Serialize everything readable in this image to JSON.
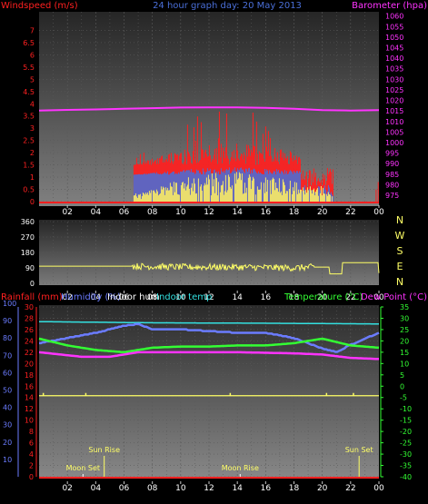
{
  "colors": {
    "background": "#000000",
    "red": "#ff2020",
    "yellow": "#ffff66",
    "magenta": "#ff33ff",
    "blue": "#6b7cff",
    "cyan": "#33e0e0",
    "green": "#33ff33",
    "white": "#ffffff",
    "steel": "#4a6fd8",
    "gray_axis": "#c8c8c8"
  },
  "chart_data": [
    {
      "id": "wind-baro",
      "type": "line",
      "title": "24 hour graph day: 20 May 2013",
      "left_axis_title": "Windspeed (m/s)",
      "right_axis_title": "Barometer (hpa)",
      "x_ticks": [
        "02",
        "04",
        "06",
        "08",
        "10",
        "12",
        "14",
        "16",
        "18",
        "20",
        "22",
        "00"
      ],
      "y_left_ticks": [
        "0",
        "0.5",
        "1",
        "1.5",
        "2",
        "2.5",
        "3",
        "3.5",
        "4",
        "4.5",
        "5",
        "5.5",
        "6",
        "6.5",
        "7"
      ],
      "y_left_range": [
        0,
        7.5
      ],
      "y_right_ticks": [
        "975",
        "980",
        "985",
        "990",
        "995",
        "1000",
        "1005",
        "1010",
        "1015",
        "1020",
        "1025",
        "1030",
        "1035",
        "1040",
        "1045",
        "1050",
        "1055",
        "1060"
      ],
      "y_right_range": [
        972,
        1062
      ],
      "barometer": [
        {
          "h": 0,
          "v": 1015.2
        },
        {
          "h": 2,
          "v": 1015.5
        },
        {
          "h": 4,
          "v": 1015.7
        },
        {
          "h": 6,
          "v": 1016.0
        },
        {
          "h": 8,
          "v": 1016.3
        },
        {
          "h": 10,
          "v": 1016.6
        },
        {
          "h": 12,
          "v": 1016.7
        },
        {
          "h": 14,
          "v": 1016.7
        },
        {
          "h": 16,
          "v": 1016.5
        },
        {
          "h": 18,
          "v": 1016.0
        },
        {
          "h": 20,
          "v": 1015.4
        },
        {
          "h": 22,
          "v": 1015.2
        },
        {
          "h": 24,
          "v": 1015.4
        }
      ],
      "wind_active_hours": [
        6.7,
        20.8
      ],
      "gust_base": 1.5,
      "average_base": 1.1,
      "gust_tail": [
        {
          "h": 23.8,
          "v": 0.5
        },
        {
          "h": 23.95,
          "v": 0.8
        }
      ]
    },
    {
      "id": "wind-direction",
      "type": "line",
      "y_ticks": [
        "0",
        "90",
        "180",
        "270",
        "360"
      ],
      "y_range": [
        0,
        360
      ],
      "direction_labels": [
        "N",
        "W",
        "S",
        "E",
        "N"
      ],
      "series": [
        {
          "h": 0,
          "v": 100
        },
        {
          "h": 6.5,
          "v": 100
        },
        {
          "h": 10,
          "v": 95
        },
        {
          "h": 14,
          "v": 95
        },
        {
          "h": 18,
          "v": 90
        },
        {
          "h": 19.3,
          "v": 95
        },
        {
          "h": 20,
          "v": 95
        },
        {
          "h": 20.5,
          "v": 55
        },
        {
          "h": 21.2,
          "v": 55
        },
        {
          "h": 21.4,
          "v": 120
        },
        {
          "h": 23.8,
          "v": 120
        },
        {
          "h": 24,
          "v": 60
        }
      ]
    },
    {
      "id": "temp-hum",
      "type": "line",
      "legend": [
        "Rainfall (mm)",
        "Humidity (%)",
        "Indoor hum",
        "Indoor temp",
        "Temperature (°C)",
        "Dew Point (°C)"
      ],
      "y_rain_ticks": [
        "0",
        "2",
        "4",
        "6",
        "8",
        "10",
        "12",
        "14",
        "16",
        "18",
        "20",
        "22",
        "24",
        "26",
        "28",
        "30"
      ],
      "y_hum_ticks": [
        "10",
        "20",
        "30",
        "40",
        "50",
        "60",
        "70",
        "80",
        "90",
        "100"
      ],
      "y_temp_ticks": [
        "35",
        "30",
        "25",
        "20",
        "15",
        "10",
        "5",
        "0",
        "-5",
        "-10",
        "-15",
        "-20",
        "-25",
        "-30",
        "-35",
        "-40"
      ],
      "temp_range": [
        -40,
        35
      ],
      "humidity": [
        {
          "h": 0,
          "v": 77
        },
        {
          "h": 2,
          "v": 80
        },
        {
          "h": 4,
          "v": 83
        },
        {
          "h": 6,
          "v": 87
        },
        {
          "h": 7,
          "v": 88
        },
        {
          "h": 8,
          "v": 85
        },
        {
          "h": 10,
          "v": 85
        },
        {
          "h": 12,
          "v": 84
        },
        {
          "h": 14,
          "v": 83
        },
        {
          "h": 16,
          "v": 83
        },
        {
          "h": 18,
          "v": 80
        },
        {
          "h": 20,
          "v": 74
        },
        {
          "h": 21,
          "v": 72
        },
        {
          "h": 22,
          "v": 76
        },
        {
          "h": 24,
          "v": 83
        }
      ],
      "indoor_temp": [
        {
          "h": 0,
          "v": 28.5
        },
        {
          "h": 8,
          "v": 28
        },
        {
          "h": 16,
          "v": 27.8
        },
        {
          "h": 24,
          "v": 27.5
        }
      ],
      "temperature": [
        {
          "h": 0,
          "v": 21
        },
        {
          "h": 2,
          "v": 18
        },
        {
          "h": 4,
          "v": 16
        },
        {
          "h": 6,
          "v": 15
        },
        {
          "h": 8,
          "v": 17
        },
        {
          "h": 10,
          "v": 17.5
        },
        {
          "h": 12,
          "v": 17.5
        },
        {
          "h": 14,
          "v": 18
        },
        {
          "h": 16,
          "v": 18
        },
        {
          "h": 18,
          "v": 19
        },
        {
          "h": 20,
          "v": 21
        },
        {
          "h": 22,
          "v": 18
        },
        {
          "h": 24,
          "v": 17
        }
      ],
      "dew_point": [
        {
          "h": 0,
          "v": 15
        },
        {
          "h": 3,
          "v": 13
        },
        {
          "h": 5,
          "v": 13
        },
        {
          "h": 7,
          "v": 15
        },
        {
          "h": 10,
          "v": 15
        },
        {
          "h": 14,
          "v": 15
        },
        {
          "h": 18,
          "v": 14.5
        },
        {
          "h": 20,
          "v": 14
        },
        {
          "h": 22,
          "v": 12.5
        },
        {
          "h": 24,
          "v": 12
        }
      ],
      "rain_line_value": -5,
      "rain_ticks_hours": [
        0.3,
        3.3,
        13.5,
        20.3,
        22.2
      ],
      "sun_moon": [
        {
          "label": "Moon Set",
          "h": 3.1,
          "row": "low"
        },
        {
          "label": "Sun Rise",
          "h": 4.6,
          "row": "high"
        },
        {
          "label": "Moon Rise",
          "h": 14.2,
          "row": "low"
        },
        {
          "label": "Sun Set",
          "h": 22.6,
          "row": "high"
        }
      ]
    }
  ]
}
